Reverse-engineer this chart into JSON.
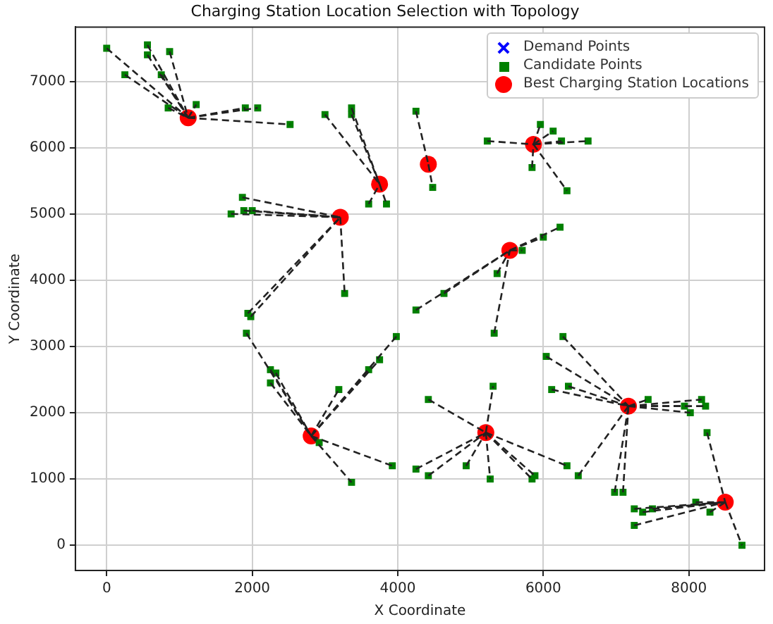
{
  "chart_data": {
    "type": "scatter",
    "title": "Charging Station Location Selection with Topology",
    "xlabel": "X Coordinate",
    "ylabel": "Y Coordinate",
    "xlim": [
      -430,
      9040
    ],
    "ylim": [
      -380,
      7820
    ],
    "xticks": [
      0,
      2000,
      4000,
      6000,
      8000
    ],
    "yticks": [
      0,
      1000,
      2000,
      3000,
      4000,
      5000,
      6000,
      7000
    ],
    "grid": true,
    "legend": "top right",
    "line_style": "dashed",
    "series": [
      {
        "name": "Demand Points",
        "type": "scatter",
        "marker": "cross",
        "color": "#0000ff",
        "x": [
          null
        ],
        "values": [
          null
        ]
      },
      {
        "name": "Candidate Points",
        "type": "scatter",
        "marker": "square",
        "color": "#008000",
        "x": [
          0,
          560,
          560,
          865,
          250,
          750,
          845,
          1230,
          1905,
          2075,
          2520,
          3000,
          3365,
          3365,
          3600,
          3845,
          1865,
          1710,
          1885,
          2000,
          3270,
          1940,
          1980,
          4250,
          4480,
          5230,
          5960,
          6135,
          6250,
          6615,
          5845,
          6325,
          6230,
          6000,
          5710,
          5365,
          4635,
          4250,
          5325,
          1920,
          2250,
          2325,
          2250,
          3190,
          3600,
          3750,
          3980,
          3925,
          3365,
          2920,
          4420,
          5310,
          4250,
          4420,
          4940,
          5270,
          5845,
          5885,
          6325,
          6270,
          6040,
          6115,
          6345,
          6480,
          7440,
          8175,
          8230,
          7940,
          8020,
          6980,
          7095,
          8250,
          8730,
          7250,
          7365,
          7500,
          8095,
          8290,
          7250
        ],
        "values": [
          7500,
          7550,
          7400,
          7450,
          7100,
          7100,
          6600,
          6650,
          6600,
          6600,
          6350,
          6500,
          6600,
          6500,
          5150,
          5150,
          5250,
          5000,
          5050,
          5050,
          3800,
          3500,
          3450,
          6550,
          5400,
          6100,
          6350,
          6250,
          6100,
          6100,
          5700,
          5350,
          4800,
          4650,
          4450,
          4100,
          3800,
          3550,
          3200,
          3200,
          2650,
          2600,
          2450,
          2350,
          2650,
          2800,
          3150,
          1200,
          950,
          1550,
          2200,
          2400,
          1150,
          1050,
          1200,
          1000,
          1000,
          1050,
          1200,
          3150,
          2850,
          2350,
          2400,
          1050,
          2200,
          2200,
          2100,
          2100,
          2000,
          800,
          800,
          1700,
          0,
          550,
          500,
          550,
          650,
          500,
          300
        ]
      },
      {
        "name": "Best Charging Station Locations",
        "type": "scatter",
        "marker": "circle",
        "color": "#ff0000",
        "x": [
          1120,
          3750,
          3210,
          4420,
          5865,
          5540,
          2810,
          5210,
          7170,
          8500
        ],
        "values": [
          6450,
          5450,
          4950,
          5750,
          6050,
          4450,
          1650,
          1700,
          2100,
          650
        ]
      },
      {
        "type": "line",
        "color": "#222222",
        "x": [
          0,
          1120
        ],
        "values": [
          7500,
          6450
        ]
      },
      {
        "type": "line",
        "color": "#222222",
        "x": [
          560,
          1120
        ],
        "values": [
          7550,
          6450
        ]
      },
      {
        "type": "line",
        "color": "#222222",
        "x": [
          560,
          1120
        ],
        "values": [
          7400,
          6450
        ]
      },
      {
        "type": "line",
        "color": "#222222",
        "x": [
          865,
          1120
        ],
        "values": [
          7450,
          6450
        ]
      },
      {
        "type": "line",
        "color": "#222222",
        "x": [
          250,
          1120
        ],
        "values": [
          7100,
          6450
        ]
      },
      {
        "type": "line",
        "color": "#222222",
        "x": [
          750,
          1120
        ],
        "values": [
          7100,
          6450
        ]
      },
      {
        "type": "line",
        "color": "#222222",
        "x": [
          845,
          1120
        ],
        "values": [
          6600,
          6450
        ]
      },
      {
        "type": "line",
        "color": "#222222",
        "x": [
          1120,
          1230
        ],
        "values": [
          6450,
          6650
        ]
      },
      {
        "type": "line",
        "color": "#222222",
        "x": [
          1120,
          1905
        ],
        "values": [
          6450,
          6600
        ]
      },
      {
        "type": "line",
        "color": "#222222",
        "x": [
          1120,
          2075
        ],
        "values": [
          6450,
          6600
        ]
      },
      {
        "type": "line",
        "color": "#222222",
        "x": [
          1120,
          2520
        ],
        "values": [
          6450,
          6350
        ]
      },
      {
        "type": "line",
        "color": "#222222",
        "x": [
          3000,
          3750
        ],
        "values": [
          6500,
          5450
        ]
      },
      {
        "type": "line",
        "color": "#222222",
        "x": [
          3365,
          3750
        ],
        "values": [
          6600,
          5450
        ]
      },
      {
        "type": "line",
        "color": "#222222",
        "x": [
          3365,
          3750
        ],
        "values": [
          6500,
          5450
        ]
      },
      {
        "type": "line",
        "color": "#222222",
        "x": [
          3600,
          3750
        ],
        "values": [
          5150,
          5450
        ]
      },
      {
        "type": "line",
        "color": "#222222",
        "x": [
          3750,
          3845
        ],
        "values": [
          5450,
          5150
        ]
      },
      {
        "type": "line",
        "color": "#222222",
        "x": [
          1865,
          3210
        ],
        "values": [
          5250,
          4950
        ]
      },
      {
        "type": "line",
        "color": "#222222",
        "x": [
          1710,
          3210
        ],
        "values": [
          5000,
          4950
        ]
      },
      {
        "type": "line",
        "color": "#222222",
        "x": [
          1885,
          3210
        ],
        "values": [
          5050,
          4950
        ]
      },
      {
        "type": "line",
        "color": "#222222",
        "x": [
          2000,
          3210
        ],
        "values": [
          5050,
          4950
        ]
      },
      {
        "type": "line",
        "color": "#222222",
        "x": [
          3210,
          3270
        ],
        "values": [
          4950,
          3800
        ]
      },
      {
        "type": "line",
        "color": "#222222",
        "x": [
          1940,
          3210
        ],
        "values": [
          3500,
          4950
        ]
      },
      {
        "type": "line",
        "color": "#222222",
        "x": [
          1980,
          3210
        ],
        "values": [
          3450,
          4950
        ]
      },
      {
        "type": "line",
        "color": "#222222",
        "x": [
          4250,
          4420
        ],
        "values": [
          6550,
          5750
        ]
      },
      {
        "type": "line",
        "color": "#222222",
        "x": [
          4420,
          4480
        ],
        "values": [
          5750,
          5400
        ]
      },
      {
        "type": "line",
        "color": "#222222",
        "x": [
          5230,
          5865
        ],
        "values": [
          6100,
          6050
        ]
      },
      {
        "type": "line",
        "color": "#222222",
        "x": [
          5865,
          5960
        ],
        "values": [
          6050,
          6350
        ]
      },
      {
        "type": "line",
        "color": "#222222",
        "x": [
          5865,
          6135
        ],
        "values": [
          6050,
          6250
        ]
      },
      {
        "type": "line",
        "color": "#222222",
        "x": [
          5865,
          6250
        ],
        "values": [
          6050,
          6100
        ]
      },
      {
        "type": "line",
        "color": "#222222",
        "x": [
          5865,
          6615
        ],
        "values": [
          6050,
          6100
        ]
      },
      {
        "type": "line",
        "color": "#222222",
        "x": [
          5845,
          5865
        ],
        "values": [
          5700,
          6050
        ]
      },
      {
        "type": "line",
        "color": "#222222",
        "x": [
          5865,
          6325
        ],
        "values": [
          6050,
          5350
        ]
      },
      {
        "type": "line",
        "color": "#222222",
        "x": [
          5540,
          6230
        ],
        "values": [
          4450,
          4800
        ]
      },
      {
        "type": "line",
        "color": "#222222",
        "x": [
          5540,
          6000
        ],
        "values": [
          4450,
          4650
        ]
      },
      {
        "type": "line",
        "color": "#222222",
        "x": [
          5540,
          5710
        ],
        "values": [
          4450,
          4450
        ]
      },
      {
        "type": "line",
        "color": "#222222",
        "x": [
          5365,
          5540
        ],
        "values": [
          4100,
          4450
        ]
      },
      {
        "type": "line",
        "color": "#222222",
        "x": [
          4635,
          5540
        ],
        "values": [
          3800,
          4450
        ]
      },
      {
        "type": "line",
        "color": "#222222",
        "x": [
          4250,
          5540
        ],
        "values": [
          3550,
          4450
        ]
      },
      {
        "type": "line",
        "color": "#222222",
        "x": [
          5325,
          5540
        ],
        "values": [
          3200,
          4450
        ]
      },
      {
        "type": "line",
        "color": "#222222",
        "x": [
          1920,
          2810
        ],
        "values": [
          3200,
          1650
        ]
      },
      {
        "type": "line",
        "color": "#222222",
        "x": [
          2250,
          2810
        ],
        "values": [
          2650,
          1650
        ]
      },
      {
        "type": "line",
        "color": "#222222",
        "x": [
          2325,
          2810
        ],
        "values": [
          2600,
          1650
        ]
      },
      {
        "type": "line",
        "color": "#222222",
        "x": [
          2250,
          2810
        ],
        "values": [
          2450,
          1650
        ]
      },
      {
        "type": "line",
        "color": "#222222",
        "x": [
          2810,
          3190
        ],
        "values": [
          1650,
          2350
        ]
      },
      {
        "type": "line",
        "color": "#222222",
        "x": [
          2810,
          3600
        ],
        "values": [
          1650,
          2650
        ]
      },
      {
        "type": "line",
        "color": "#222222",
        "x": [
          2810,
          3750
        ],
        "values": [
          1650,
          2800
        ]
      },
      {
        "type": "line",
        "color": "#222222",
        "x": [
          2810,
          3980
        ],
        "values": [
          1650,
          3150
        ]
      },
      {
        "type": "line",
        "color": "#222222",
        "x": [
          2810,
          3925
        ],
        "values": [
          1650,
          1200
        ]
      },
      {
        "type": "line",
        "color": "#222222",
        "x": [
          2810,
          3365
        ],
        "values": [
          1650,
          950
        ]
      },
      {
        "type": "line",
        "color": "#222222",
        "x": [
          2810,
          2920
        ],
        "values": [
          1650,
          1550
        ]
      },
      {
        "type": "line",
        "color": "#222222",
        "x": [
          4420,
          5210
        ],
        "values": [
          2200,
          1700
        ]
      },
      {
        "type": "line",
        "color": "#222222",
        "x": [
          5210,
          5310
        ],
        "values": [
          1700,
          2400
        ]
      },
      {
        "type": "line",
        "color": "#222222",
        "x": [
          4250,
          5210
        ],
        "values": [
          1150,
          1700
        ]
      },
      {
        "type": "line",
        "color": "#222222",
        "x": [
          4420,
          5210
        ],
        "values": [
          1050,
          1700
        ]
      },
      {
        "type": "line",
        "color": "#222222",
        "x": [
          4940,
          5210
        ],
        "values": [
          1200,
          1700
        ]
      },
      {
        "type": "line",
        "color": "#222222",
        "x": [
          5210,
          5270
        ],
        "values": [
          1700,
          1000
        ]
      },
      {
        "type": "line",
        "color": "#222222",
        "x": [
          5210,
          5845
        ],
        "values": [
          1700,
          1000
        ]
      },
      {
        "type": "line",
        "color": "#222222",
        "x": [
          5210,
          5885
        ],
        "values": [
          1700,
          1050
        ]
      },
      {
        "type": "line",
        "color": "#222222",
        "x": [
          5210,
          6325
        ],
        "values": [
          1700,
          1200
        ]
      },
      {
        "type": "line",
        "color": "#222222",
        "x": [
          6270,
          7170
        ],
        "values": [
          3150,
          2100
        ]
      },
      {
        "type": "line",
        "color": "#222222",
        "x": [
          6040,
          7170
        ],
        "values": [
          2850,
          2100
        ]
      },
      {
        "type": "line",
        "color": "#222222",
        "x": [
          6115,
          7170
        ],
        "values": [
          2350,
          2100
        ]
      },
      {
        "type": "line",
        "color": "#222222",
        "x": [
          6345,
          7170
        ],
        "values": [
          2400,
          2100
        ]
      },
      {
        "type": "line",
        "color": "#222222",
        "x": [
          6480,
          7170
        ],
        "values": [
          1050,
          2100
        ]
      },
      {
        "type": "line",
        "color": "#222222",
        "x": [
          7170,
          7440
        ],
        "values": [
          2100,
          2200
        ]
      },
      {
        "type": "line",
        "color": "#222222",
        "x": [
          7170,
          8175
        ],
        "values": [
          2100,
          2200
        ]
      },
      {
        "type": "line",
        "color": "#222222",
        "x": [
          7170,
          8230
        ],
        "values": [
          2100,
          2100
        ]
      },
      {
        "type": "line",
        "color": "#222222",
        "x": [
          7170,
          7940
        ],
        "values": [
          2100,
          2100
        ]
      },
      {
        "type": "line",
        "color": "#222222",
        "x": [
          7170,
          8020
        ],
        "values": [
          2100,
          2000
        ]
      },
      {
        "type": "line",
        "color": "#222222",
        "x": [
          6980,
          7170
        ],
        "values": [
          800,
          2100
        ]
      },
      {
        "type": "line",
        "color": "#222222",
        "x": [
          7095,
          7170
        ],
        "values": [
          800,
          2100
        ]
      },
      {
        "type": "line",
        "color": "#222222",
        "x": [
          8250,
          8500
        ],
        "values": [
          1700,
          650
        ]
      },
      {
        "type": "line",
        "color": "#222222",
        "x": [
          8500,
          8730
        ],
        "values": [
          650,
          0
        ]
      },
      {
        "type": "line",
        "color": "#222222",
        "x": [
          7250,
          8500
        ],
        "values": [
          550,
          650
        ]
      },
      {
        "type": "line",
        "color": "#222222",
        "x": [
          7365,
          8500
        ],
        "values": [
          500,
          650
        ]
      },
      {
        "type": "line",
        "color": "#222222",
        "x": [
          7500,
          8500
        ],
        "values": [
          550,
          650
        ]
      },
      {
        "type": "line",
        "color": "#222222",
        "x": [
          8095,
          8500
        ],
        "values": [
          650,
          650
        ]
      },
      {
        "type": "line",
        "color": "#222222",
        "x": [
          8290,
          8500
        ],
        "values": [
          500,
          650
        ]
      },
      {
        "type": "line",
        "color": "#222222",
        "x": [
          7250,
          8500
        ],
        "values": [
          300,
          650
        ]
      }
    ]
  }
}
